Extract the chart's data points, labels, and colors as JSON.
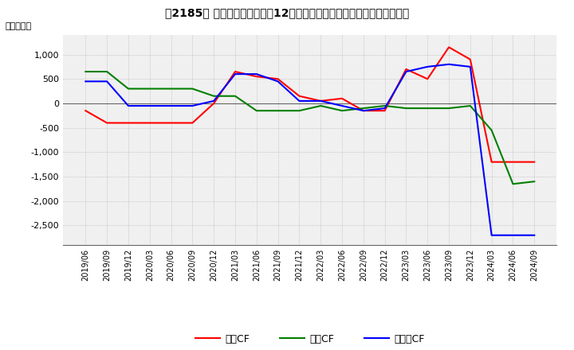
{
  "title": "【2185】 キャッシュフローの12か月移動合計の対前年同期増減額の推移",
  "ylabel": "（百万円）",
  "ylim": [
    -2900,
    1400
  ],
  "yticks": [
    1000,
    500,
    0,
    -500,
    -1000,
    -1500,
    -2000,
    -2500
  ],
  "x_labels": [
    "2019/06",
    "2019/09",
    "2019/12",
    "2020/03",
    "2020/06",
    "2020/09",
    "2020/12",
    "2021/03",
    "2021/06",
    "2021/09",
    "2021/12",
    "2022/03",
    "2022/06",
    "2022/09",
    "2022/12",
    "2023/03",
    "2023/06",
    "2023/09",
    "2023/12",
    "2024/03",
    "2024/06",
    "2024/09"
  ],
  "operating_cf": [
    -150,
    -400,
    -400,
    -400,
    -400,
    -400,
    0,
    650,
    550,
    500,
    150,
    50,
    100,
    -150,
    -150,
    700,
    500,
    1150,
    900,
    -1200,
    -1200,
    -1200
  ],
  "investing_cf": [
    650,
    650,
    300,
    300,
    300,
    300,
    150,
    150,
    -150,
    -150,
    -150,
    -50,
    -150,
    -100,
    -50,
    -100,
    -100,
    -100,
    -50,
    -550,
    -1650,
    -1600
  ],
  "free_cf": [
    450,
    450,
    -50,
    -50,
    -50,
    -50,
    50,
    600,
    600,
    450,
    50,
    50,
    -50,
    -150,
    -100,
    650,
    750,
    800,
    750,
    -2700,
    -2700,
    -2700
  ],
  "color_operating": "#ff0000",
  "color_investing": "#008000",
  "color_free": "#0000ff",
  "bg_plot": "#f0f0f0",
  "grid_color": "#aaaaaa",
  "linewidth": 1.5
}
